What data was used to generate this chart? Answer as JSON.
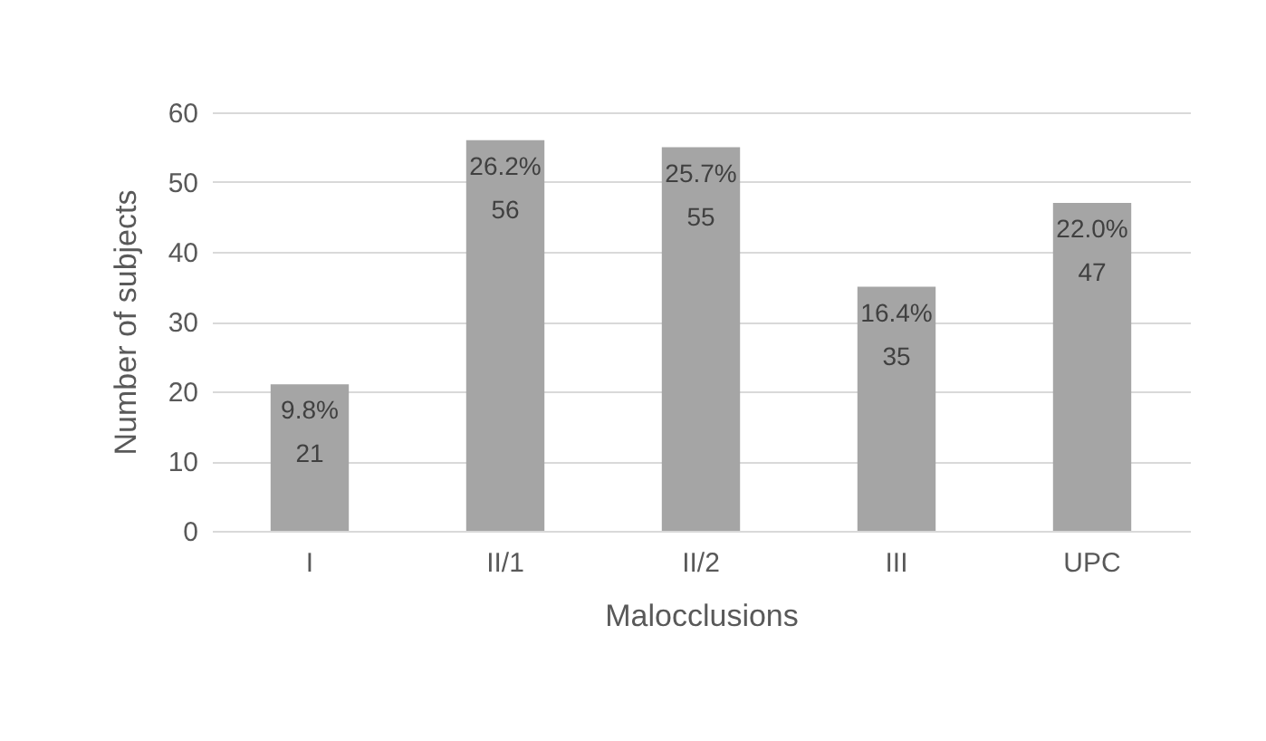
{
  "chart_data": {
    "type": "bar",
    "xlabel": "Malocclusions",
    "ylabel": "Number of subjects",
    "categories": [
      "I",
      "II/1",
      "II/2",
      "III",
      "UPC"
    ],
    "values": [
      21,
      56,
      55,
      35,
      47
    ],
    "value_labels": [
      "9.8%\n21",
      "26.2%\n56",
      "25.7%\n55",
      "16.4%\n35",
      "22.0%\n47"
    ],
    "color": "#a5a5a5",
    "ylim": [
      0,
      60
    ],
    "yticks": [
      0,
      10,
      20,
      30,
      40,
      50,
      60
    ],
    "grid": "y"
  }
}
